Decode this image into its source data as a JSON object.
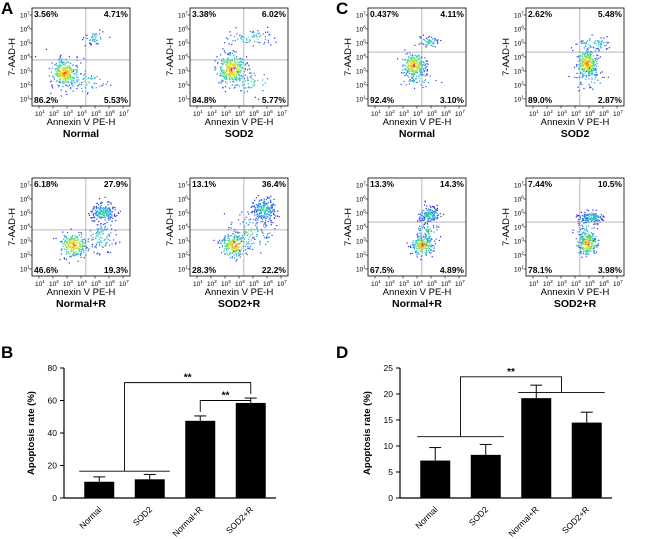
{
  "panel_letters": [
    "A",
    "B",
    "C",
    "D"
  ],
  "flow_axis_labels": {
    "x": "Annexin V PE-H",
    "y": "7-AAD-H"
  },
  "significance_label": "**",
  "chart_data": [
    {
      "type": "scatter",
      "panel": "A",
      "title": "Normal",
      "xlabel": "Annexin V PE-H",
      "ylabel": "7-AAD-H",
      "quadrants": {
        "upper_left": "3.56%",
        "upper_right": "4.71%",
        "lower_left": "86.2%",
        "lower_right": "5.53%"
      }
    },
    {
      "type": "scatter",
      "panel": "A",
      "title": "SOD2",
      "xlabel": "Annexin V PE-H",
      "ylabel": "7-AAD-H",
      "quadrants": {
        "upper_left": "3.38%",
        "upper_right": "6.02%",
        "lower_left": "84.8%",
        "lower_right": "5.77%"
      }
    },
    {
      "type": "scatter",
      "panel": "A",
      "title": "Normal+R",
      "xlabel": "Annexin V PE-H",
      "ylabel": "7-AAD-H",
      "quadrants": {
        "upper_left": "6.18%",
        "upper_right": "27.9%",
        "lower_left": "46.6%",
        "lower_right": "19.3%"
      }
    },
    {
      "type": "scatter",
      "panel": "A",
      "title": "SOD2+R",
      "xlabel": "Annexin V PE-H",
      "ylabel": "7-AAD-H",
      "quadrants": {
        "upper_left": "13.1%",
        "upper_right": "36.4%",
        "lower_left": "28.3%",
        "lower_right": "22.2%"
      }
    },
    {
      "type": "scatter",
      "panel": "C",
      "title": "Normal",
      "xlabel": "Annexin V PE-H",
      "ylabel": "7-AAD-H",
      "quadrants": {
        "upper_left": "0.437%",
        "upper_right": "4.11%",
        "lower_left": "92.4%",
        "lower_right": "3.10%"
      }
    },
    {
      "type": "scatter",
      "panel": "C",
      "title": "SOD2",
      "xlabel": "Annexin V PE-H",
      "ylabel": "7-AAD-H",
      "quadrants": {
        "upper_left": "2.62%",
        "upper_right": "5.48%",
        "lower_left": "89.0%",
        "lower_right": "2.87%"
      }
    },
    {
      "type": "scatter",
      "panel": "C",
      "title": "Normal+R",
      "xlabel": "Annexin V PE-H",
      "ylabel": "7-AAD-H",
      "quadrants": {
        "upper_left": "13.3%",
        "upper_right": "14.3%",
        "lower_left": "67.5%",
        "lower_right": "4.89%"
      }
    },
    {
      "type": "scatter",
      "panel": "C",
      "title": "SOD2+R",
      "xlabel": "Annexin V PE-H",
      "ylabel": "7-AAD-H",
      "quadrants": {
        "upper_left": "7.44%",
        "upper_right": "10.5%",
        "lower_left": "78.1%",
        "lower_right": "3.98%"
      }
    },
    {
      "type": "bar",
      "panel": "B",
      "categories": [
        "Normal",
        "SOD2",
        "Normal+R",
        "SOD2+R"
      ],
      "values": [
        10,
        11.5,
        47.5,
        58.5
      ],
      "errors": [
        3,
        3,
        3,
        3
      ],
      "ylabel": "Apoptosis rate (%)",
      "ylim": [
        0,
        80
      ],
      "yticks": [
        0,
        20,
        40,
        60,
        80
      ]
    },
    {
      "type": "bar",
      "panel": "D",
      "categories": [
        "Normal",
        "SOD2",
        "Normal+R",
        "SOD2+R"
      ],
      "values": [
        7.2,
        8.3,
        19.2,
        14.5
      ],
      "errors": [
        2.5,
        2,
        2.5,
        2
      ],
      "ylabel": "Apoptosis rate (%)",
      "ylim": [
        0,
        25
      ],
      "yticks": [
        0,
        5,
        10,
        15,
        20,
        25
      ]
    }
  ]
}
